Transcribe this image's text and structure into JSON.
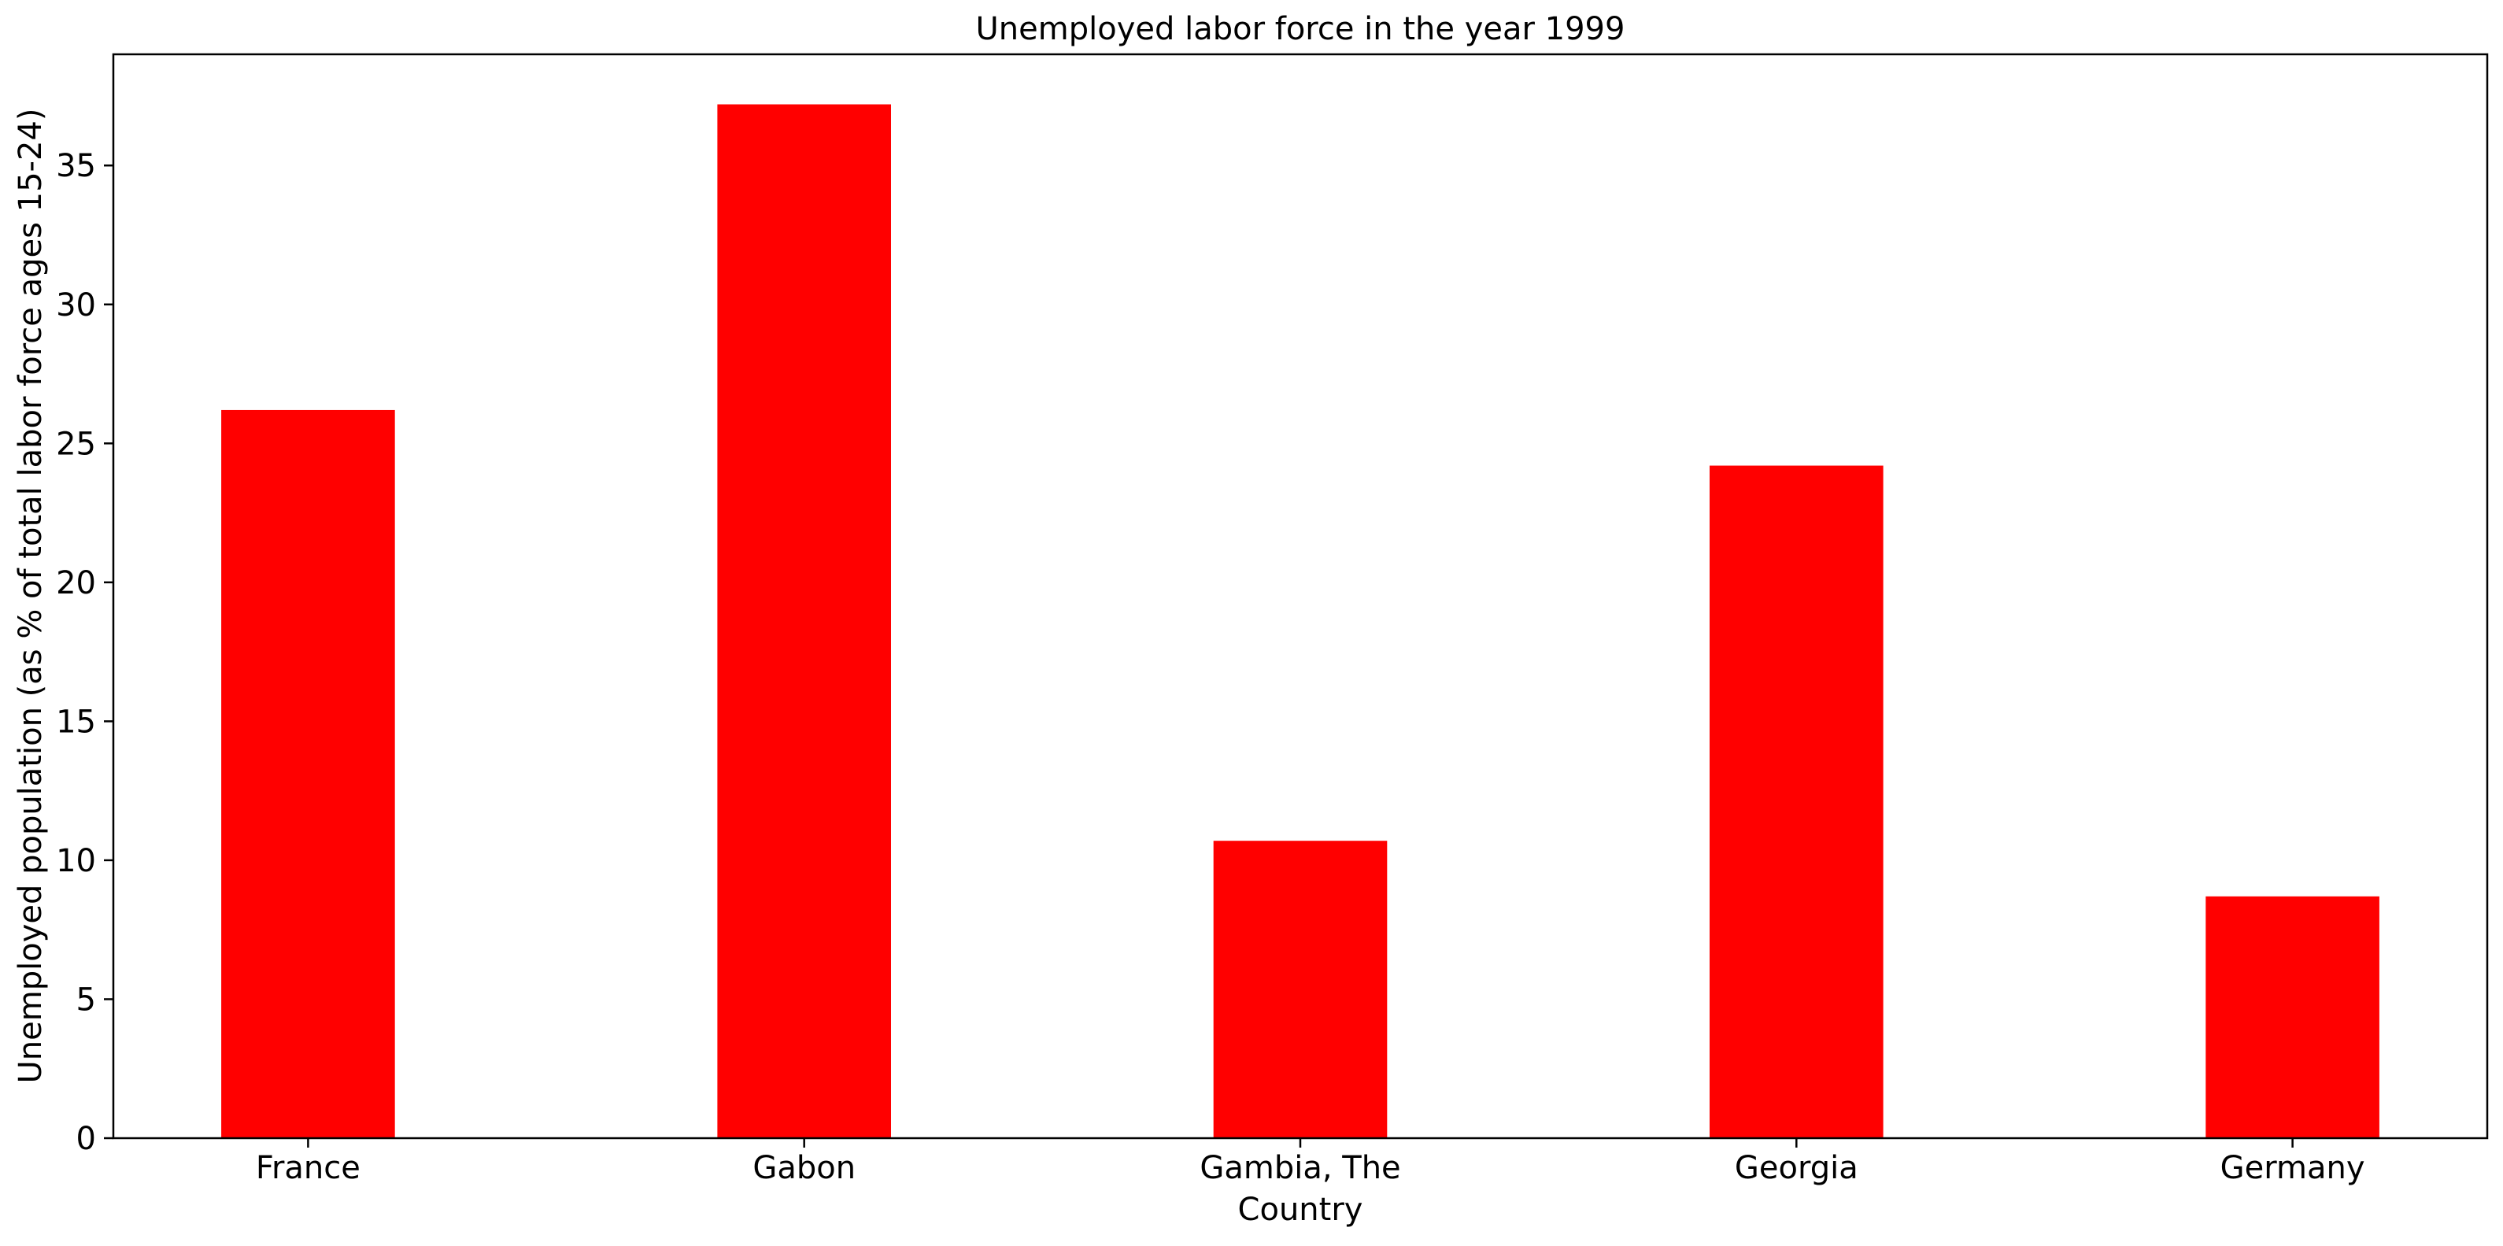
{
  "chart_data": {
    "type": "bar",
    "title": "Unemployed labor force in the year 1999",
    "xlabel": "Country",
    "ylabel": "Unemployed population (as % of total labor force ages 15-24)",
    "categories": [
      "France",
      "Gabon",
      "Gambia, The",
      "Georgia",
      "Germany"
    ],
    "values": [
      26.2,
      37.2,
      10.7,
      24.2,
      8.7
    ],
    "ylim": [
      0,
      39
    ],
    "yticks": [
      0,
      5,
      10,
      15,
      20,
      25,
      30,
      35
    ],
    "bar_color": "#ff0000",
    "grid": false
  }
}
